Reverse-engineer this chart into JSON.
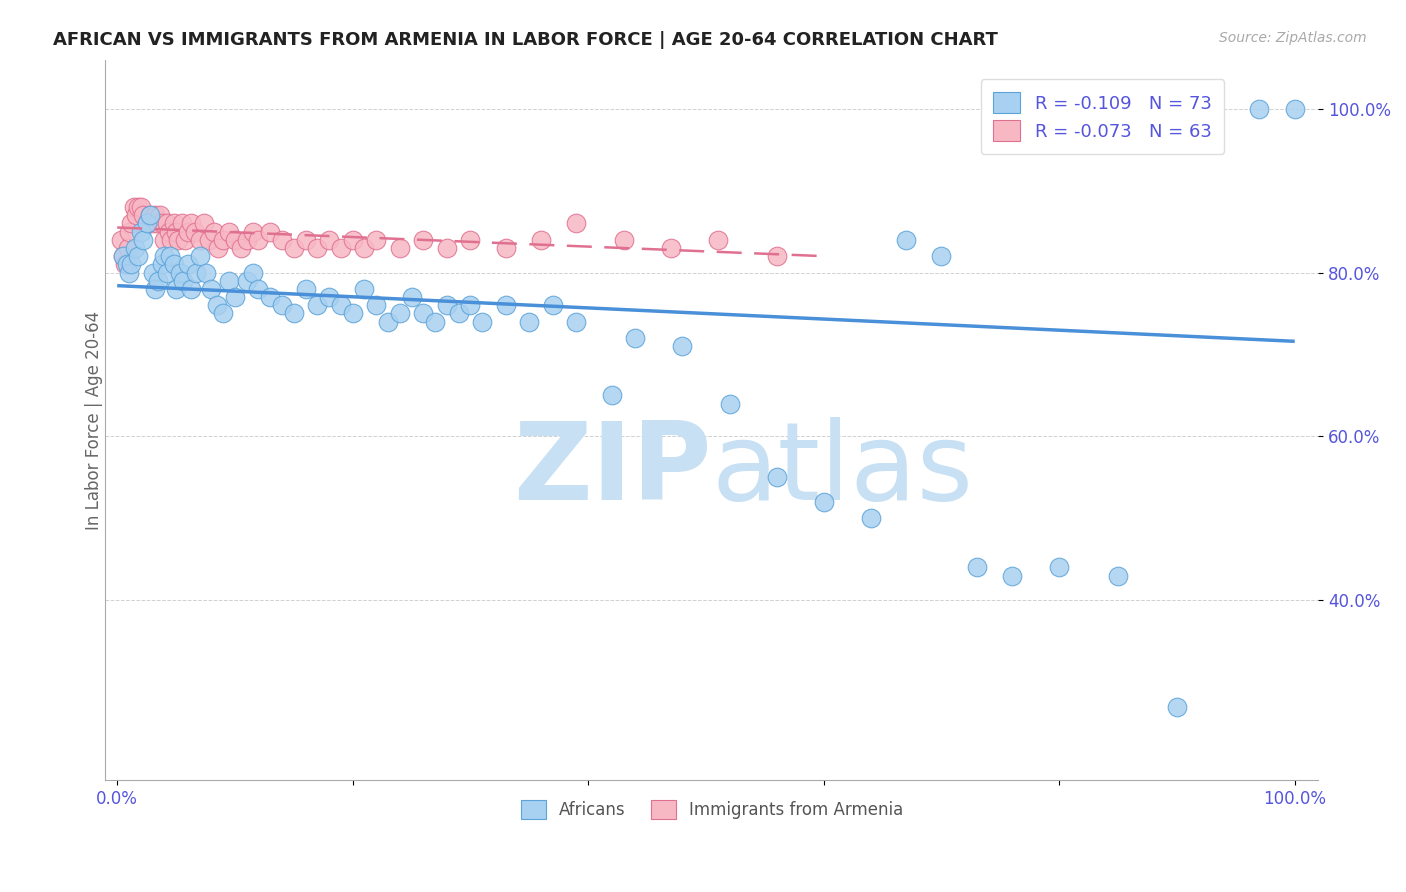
{
  "title": "AFRICAN VS IMMIGRANTS FROM ARMENIA IN LABOR FORCE | AGE 20-64 CORRELATION CHART",
  "source": "Source: ZipAtlas.com",
  "ylabel": "In Labor Force | Age 20-64",
  "xlim": [
    -0.01,
    1.02
  ],
  "ylim": [
    0.18,
    1.06
  ],
  "yticks": [
    0.4,
    0.6,
    0.8,
    1.0
  ],
  "ytick_labels": [
    "40.0%",
    "60.0%",
    "80.0%",
    "100.0%"
  ],
  "xtick_labels": [
    "0.0%",
    "",
    "",
    "",
    "",
    "100.0%"
  ],
  "xticks": [
    0.0,
    0.2,
    0.4,
    0.6,
    0.8,
    1.0
  ],
  "legend_r1": "-0.109",
  "legend_n1": "73",
  "legend_r2": "-0.073",
  "legend_n2": "63",
  "blue_color": "#a8d0f0",
  "blue_edge": "#5ba3d9",
  "pink_color": "#f7b8c4",
  "pink_edge": "#e07090",
  "trend_blue": "#4a90d9",
  "trend_pink": "#e07090",
  "watermark_color": "#c8e0f4",
  "tick_color": "#5555dd",
  "grid_color": "#cccccc",
  "africans_x": [
    0.005,
    0.008,
    0.01,
    0.012,
    0.015,
    0.018,
    0.02,
    0.022,
    0.025,
    0.028,
    0.03,
    0.032,
    0.035,
    0.038,
    0.04,
    0.042,
    0.045,
    0.048,
    0.05,
    0.053,
    0.056,
    0.06,
    0.063,
    0.067,
    0.07,
    0.075,
    0.08,
    0.085,
    0.09,
    0.095,
    0.1,
    0.11,
    0.115,
    0.12,
    0.13,
    0.14,
    0.15,
    0.16,
    0.17,
    0.18,
    0.19,
    0.2,
    0.21,
    0.22,
    0.23,
    0.24,
    0.25,
    0.26,
    0.27,
    0.28,
    0.29,
    0.3,
    0.31,
    0.33,
    0.35,
    0.37,
    0.39,
    0.42,
    0.44,
    0.48,
    0.52,
    0.56,
    0.6,
    0.64,
    0.67,
    0.7,
    0.73,
    0.76,
    0.8,
    0.85,
    0.9,
    0.97,
    1.0
  ],
  "africans_y": [
    0.82,
    0.81,
    0.8,
    0.81,
    0.83,
    0.82,
    0.85,
    0.84,
    0.86,
    0.87,
    0.8,
    0.78,
    0.79,
    0.81,
    0.82,
    0.8,
    0.82,
    0.81,
    0.78,
    0.8,
    0.79,
    0.81,
    0.78,
    0.8,
    0.82,
    0.8,
    0.78,
    0.76,
    0.75,
    0.79,
    0.77,
    0.79,
    0.8,
    0.78,
    0.77,
    0.76,
    0.75,
    0.78,
    0.76,
    0.77,
    0.76,
    0.75,
    0.78,
    0.76,
    0.74,
    0.75,
    0.77,
    0.75,
    0.74,
    0.76,
    0.75,
    0.76,
    0.74,
    0.76,
    0.74,
    0.76,
    0.74,
    0.65,
    0.72,
    0.71,
    0.64,
    0.55,
    0.52,
    0.5,
    0.84,
    0.82,
    0.44,
    0.43,
    0.44,
    0.43,
    0.27,
    1.0,
    1.0
  ],
  "armenia_x": [
    0.003,
    0.005,
    0.007,
    0.009,
    0.01,
    0.012,
    0.014,
    0.016,
    0.018,
    0.02,
    0.022,
    0.025,
    0.028,
    0.03,
    0.032,
    0.034,
    0.036,
    0.038,
    0.04,
    0.042,
    0.044,
    0.046,
    0.048,
    0.05,
    0.052,
    0.055,
    0.058,
    0.06,
    0.063,
    0.066,
    0.07,
    0.074,
    0.078,
    0.082,
    0.086,
    0.09,
    0.095,
    0.1,
    0.105,
    0.11,
    0.115,
    0.12,
    0.13,
    0.14,
    0.15,
    0.16,
    0.17,
    0.18,
    0.19,
    0.2,
    0.21,
    0.22,
    0.24,
    0.26,
    0.28,
    0.3,
    0.33,
    0.36,
    0.39,
    0.43,
    0.47,
    0.51,
    0.56
  ],
  "armenia_y": [
    0.84,
    0.82,
    0.81,
    0.83,
    0.85,
    0.86,
    0.88,
    0.87,
    0.88,
    0.88,
    0.87,
    0.86,
    0.87,
    0.86,
    0.87,
    0.86,
    0.87,
    0.86,
    0.84,
    0.86,
    0.85,
    0.84,
    0.86,
    0.85,
    0.84,
    0.86,
    0.84,
    0.85,
    0.86,
    0.85,
    0.84,
    0.86,
    0.84,
    0.85,
    0.83,
    0.84,
    0.85,
    0.84,
    0.83,
    0.84,
    0.85,
    0.84,
    0.85,
    0.84,
    0.83,
    0.84,
    0.83,
    0.84,
    0.83,
    0.84,
    0.83,
    0.84,
    0.83,
    0.84,
    0.83,
    0.84,
    0.83,
    0.84,
    0.86,
    0.84,
    0.83,
    0.84,
    0.82
  ],
  "afr_trend_x0": 0.0,
  "afr_trend_y0": 0.784,
  "afr_trend_x1": 1.0,
  "afr_trend_y1": 0.716,
  "arm_trend_x0": 0.0,
  "arm_trend_y0": 0.855,
  "arm_trend_x1": 0.6,
  "arm_trend_y1": 0.82
}
